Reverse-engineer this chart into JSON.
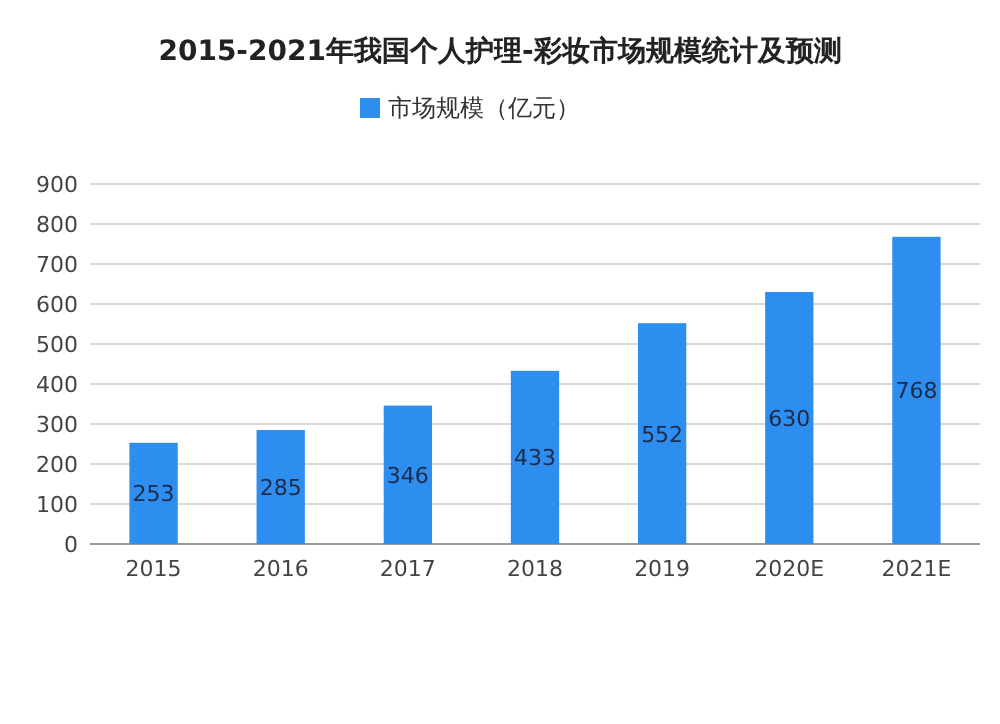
{
  "chart_data": {
    "type": "bar",
    "title": "2015-2021年我国个人护理-彩妆市场规模统计及预测",
    "categories": [
      "2015",
      "2016",
      "2017",
      "2018",
      "2019",
      "2020E",
      "2021E"
    ],
    "series": [
      {
        "name": "市场规模（亿元）",
        "color": "#2e8ef0",
        "values": [
          253,
          285,
          346,
          433,
          552,
          630,
          768
        ]
      }
    ],
    "ylim": [
      0,
      900
    ],
    "yticks": [
      0,
      100,
      200,
      300,
      400,
      500,
      600,
      700,
      800,
      900
    ],
    "grid": "y",
    "legend": "top",
    "data_labels": true
  }
}
